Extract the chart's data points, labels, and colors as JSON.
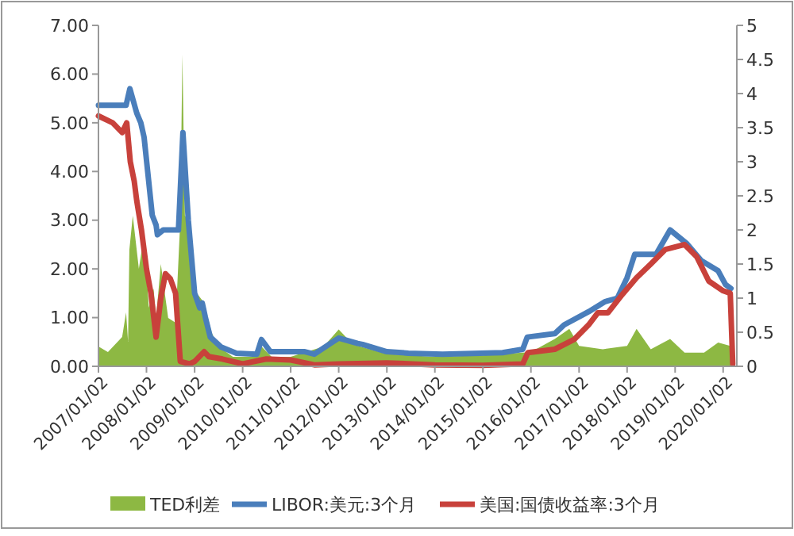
{
  "chart_data": {
    "type": "line",
    "xlim": [
      "2007-01-02",
      "2020-04-15"
    ],
    "xticks": [
      {
        "value": "2007-01-02",
        "label": "2007/01/02"
      },
      {
        "value": "2008-01-02",
        "label": "2008/01/02"
      },
      {
        "value": "2009-01-02",
        "label": "2009/01/02"
      },
      {
        "value": "2010-01-02",
        "label": "2010/01/02"
      },
      {
        "value": "2011-01-02",
        "label": "2011/01/02"
      },
      {
        "value": "2012-01-02",
        "label": "2012/01/02"
      },
      {
        "value": "2013-01-02",
        "label": "2013/01/02"
      },
      {
        "value": "2014-01-02",
        "label": "2014/01/02"
      },
      {
        "value": "2015-01-02",
        "label": "2015/01/02"
      },
      {
        "value": "2016-01-02",
        "label": "2016/01/02"
      },
      {
        "value": "2017-01-02",
        "label": "2017/01/02"
      },
      {
        "value": "2018-01-02",
        "label": "2018/01/02"
      },
      {
        "value": "2019-01-02",
        "label": "2019/01/02"
      },
      {
        "value": "2020-01-02",
        "label": "2020/01/02"
      }
    ],
    "ylim": [
      0,
      7
    ],
    "yticks": [
      {
        "value": 0,
        "label": "0.00"
      },
      {
        "value": 1,
        "label": "1.00"
      },
      {
        "value": 2,
        "label": "2.00"
      },
      {
        "value": 3,
        "label": "3.00"
      },
      {
        "value": 4,
        "label": "4.00"
      },
      {
        "value": 5,
        "label": "5.00"
      },
      {
        "value": 6,
        "label": "6.00"
      },
      {
        "value": 7,
        "label": "7.00"
      }
    ],
    "y2lim": [
      0,
      5
    ],
    "y2ticks": [
      0,
      0.5,
      1,
      1.5,
      2,
      2.5,
      3,
      3.5,
      4,
      4.5,
      5
    ],
    "grid": false,
    "legend": "bottom",
    "series": [
      {
        "name": "TED利差",
        "type": "area",
        "axis": "y2",
        "color": "#8db843",
        "x": [
          "2007-01-02",
          "2007-03-15",
          "2007-07-01",
          "2007-07-31",
          "2007-08-15",
          "2007-08-25",
          "2007-09-20",
          "2007-11-05",
          "2007-12-15",
          "2008-01-20",
          "2008-02-25",
          "2008-03-15",
          "2008-04-20",
          "2008-06-15",
          "2008-08-10",
          "2008-09-15",
          "2008-10-01",
          "2008-10-20",
          "2008-11-15",
          "2008-12-15",
          "2009-01-20",
          "2009-03-15",
          "2009-05-10",
          "2009-07-01",
          "2009-10-20",
          "2010-04-20",
          "2010-05-25",
          "2010-08-10",
          "2011-01-02",
          "2011-09-10",
          "2012-01-02",
          "2012-04-20",
          "2013-01-02",
          "2014-01-02",
          "2015-01-02",
          "2016-01-02",
          "2016-07-01",
          "2016-10-20",
          "2017-01-02",
          "2017-07-01",
          "2018-01-02",
          "2018-03-15",
          "2018-07-01",
          "2018-11-25",
          "2019-03-15",
          "2019-08-10",
          "2019-11-25",
          "2020-02-25",
          "2020-03-15"
        ],
        "values": [
          0.29,
          0.21,
          0.43,
          0.79,
          0.36,
          1.71,
          2.21,
          1.43,
          1.93,
          0.86,
          1.14,
          0.71,
          1.5,
          0.71,
          0.64,
          2.14,
          4.57,
          2.21,
          2.14,
          1.43,
          1.07,
          0.93,
          0.5,
          0.29,
          0.14,
          0.14,
          0.29,
          0.14,
          0.14,
          0.29,
          0.54,
          0.32,
          0.18,
          0.14,
          0.16,
          0.21,
          0.4,
          0.55,
          0.3,
          0.25,
          0.3,
          0.55,
          0.25,
          0.4,
          0.2,
          0.2,
          0.35,
          0.3,
          0
        ]
      },
      {
        "name": "LIBOR:美元:3个月",
        "color": "#4a7ebb",
        "x": [
          "2007-01-02",
          "2007-07-31",
          "2007-08-29",
          "2007-10-20",
          "2007-11-20",
          "2007-12-15",
          "2008-02-15",
          "2008-03-15",
          "2008-03-25",
          "2008-05-08",
          "2008-09-01",
          "2008-10-05",
          "2008-11-15",
          "2009-01-02",
          "2009-02-10",
          "2009-03-01",
          "2009-03-25",
          "2009-05-01",
          "2009-07-20",
          "2009-11-15",
          "2010-04-20",
          "2010-05-25",
          "2010-08-01",
          "2011-04-20",
          "2011-07-01",
          "2011-10-20",
          "2012-01-02",
          "2012-05-25",
          "2012-07-01",
          "2013-01-02",
          "2013-06-15",
          "2014-03-01",
          "2015-06-01",
          "2015-11-01",
          "2015-12-05",
          "2016-07-01",
          "2016-09-10",
          "2017-03-15",
          "2017-07-20",
          "2017-10-20",
          "2018-01-02",
          "2018-03-01",
          "2018-08-10",
          "2018-11-25",
          "2019-04-01",
          "2019-07-20",
          "2019-11-25",
          "2020-01-20",
          "2020-03-01"
        ],
        "values": [
          5.36,
          5.36,
          5.7,
          5.2,
          5.0,
          4.7,
          3.1,
          2.9,
          2.7,
          2.8,
          2.8,
          4.8,
          3.0,
          1.5,
          1.2,
          1.3,
          1.0,
          0.6,
          0.4,
          0.27,
          0.25,
          0.55,
          0.3,
          0.3,
          0.25,
          0.45,
          0.58,
          0.47,
          0.45,
          0.3,
          0.27,
          0.25,
          0.28,
          0.35,
          0.6,
          0.67,
          0.85,
          1.12,
          1.33,
          1.4,
          1.82,
          2.3,
          2.3,
          2.8,
          2.52,
          2.17,
          1.96,
          1.68,
          1.6
        ]
      },
      {
        "name": "美国:国债收益率:3个月",
        "color": "#c8413b",
        "x": [
          "2007-01-02",
          "2007-04-20",
          "2007-07-01",
          "2007-08-05",
          "2007-09-01",
          "2007-10-01",
          "2007-10-20",
          "2007-11-25",
          "2008-01-02",
          "2008-02-05",
          "2008-03-15",
          "2008-04-20",
          "2008-05-25",
          "2008-07-01",
          "2008-08-10",
          "2008-09-15",
          "2008-11-25",
          "2009-01-02",
          "2009-03-15",
          "2009-04-20",
          "2009-08-01",
          "2010-01-02",
          "2010-07-01",
          "2011-01-02",
          "2011-07-01",
          "2012-01-02",
          "2013-01-02",
          "2014-01-02",
          "2015-01-02",
          "2015-11-01",
          "2015-12-10",
          "2016-07-01",
          "2016-11-25",
          "2017-03-15",
          "2017-05-25",
          "2017-08-10",
          "2017-11-25",
          "2018-03-15",
          "2018-07-01",
          "2018-10-20",
          "2019-03-15",
          "2019-06-15",
          "2019-09-15",
          "2020-01-02",
          "2020-02-25",
          "2020-03-15"
        ],
        "values": [
          5.14,
          5.0,
          4.8,
          5.0,
          4.2,
          3.8,
          3.4,
          2.8,
          2.0,
          1.5,
          0.6,
          1.4,
          1.9,
          1.8,
          1.5,
          0.1,
          0.05,
          0.1,
          0.3,
          0.2,
          0.15,
          0.05,
          0.15,
          0.13,
          0.03,
          0.05,
          0.07,
          0.03,
          0.02,
          0.05,
          0.28,
          0.35,
          0.55,
          0.85,
          1.1,
          1.1,
          1.47,
          1.82,
          2.1,
          2.4,
          2.5,
          2.25,
          1.75,
          1.55,
          1.5,
          0.05
        ]
      }
    ]
  }
}
